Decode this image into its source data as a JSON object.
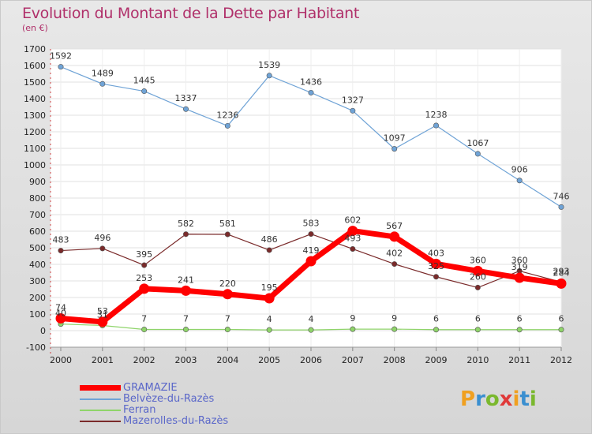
{
  "title": "Evolution du Montant de la Dette par Habitant",
  "subtitle": "(en €)",
  "logo": "Proxiti",
  "chart_data": {
    "type": "line",
    "title": "Evolution du Montant de la Dette par Habitant",
    "subtitle": "(en €)",
    "x": [
      "2000",
      "2001",
      "2002",
      "2003",
      "2004",
      "2005",
      "2006",
      "2007",
      "2008",
      "2009",
      "2010",
      "2011",
      "2012"
    ],
    "ylim": [
      -100,
      1700
    ],
    "yticks": [
      -100,
      0,
      100,
      200,
      300,
      400,
      500,
      600,
      700,
      800,
      900,
      1000,
      1100,
      1200,
      1300,
      1400,
      1500,
      1600,
      1700
    ],
    "grid": true,
    "legend_position": "bottom-left",
    "series": [
      {
        "name": "GRAMAZIE",
        "color": "#ff0000",
        "values": [
          74,
          53,
          253,
          241,
          220,
          195,
          419,
          602,
          567,
          403,
          360,
          319,
          284
        ]
      },
      {
        "name": "Belvèze-du-Razès",
        "color": "#6fa3d6",
        "values": [
          1592,
          1489,
          1445,
          1337,
          1236,
          1539,
          1436,
          1327,
          1097,
          1238,
          1067,
          906,
          746
        ]
      },
      {
        "name": "Ferran",
        "color": "#8fd46a",
        "values": [
          40,
          31,
          7,
          7,
          7,
          4,
          4,
          9,
          9,
          6,
          6,
          6,
          6
        ]
      },
      {
        "name": "Mazerolles-du-Razès",
        "color": "#7a2a2a",
        "values": [
          483,
          496,
          395,
          582,
          581,
          486,
          583,
          493,
          402,
          325,
          260,
          360,
          293
        ]
      }
    ]
  }
}
